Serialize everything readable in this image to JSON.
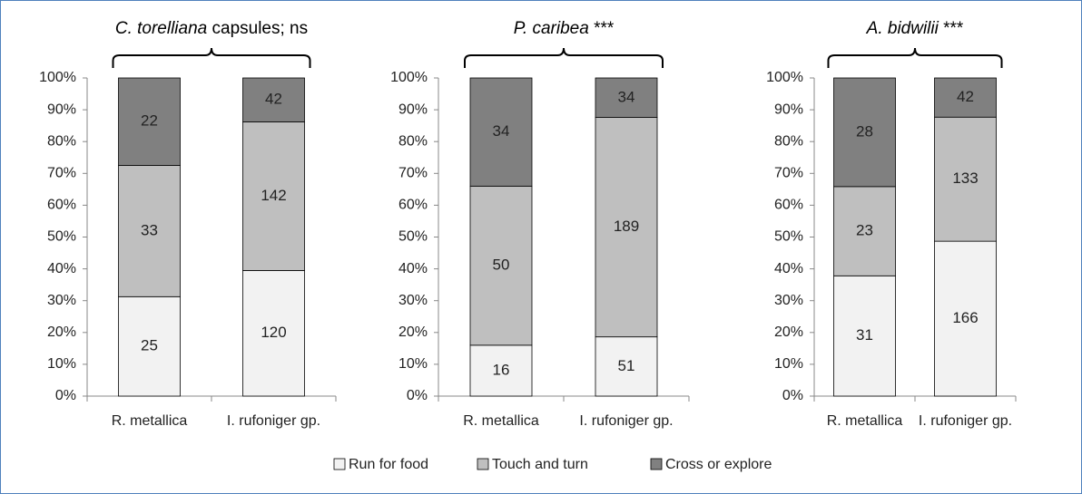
{
  "chart_data": [
    {
      "type": "bar",
      "stacked": "percent",
      "title": [
        {
          "text": "C. torelliana",
          "italic": true
        },
        {
          "text": " capsules; ns"
        }
      ],
      "categories": [
        "R. metallica",
        "I. rufoniger gp."
      ],
      "series": [
        {
          "name": "Run for food",
          "color": "#f2f2f2",
          "values": [
            25,
            120
          ]
        },
        {
          "name": "Touch and turn",
          "color": "#bfbfbf",
          "values": [
            33,
            142
          ]
        },
        {
          "name": "Cross or explore",
          "color": "#808080",
          "values": [
            22,
            42
          ]
        }
      ],
      "ylim": [
        0,
        100
      ],
      "yticks": [
        {
          "value": 0,
          "label": "0%"
        },
        {
          "value": 10,
          "label": "10%"
        },
        {
          "value": 20,
          "label": "20%"
        },
        {
          "value": 30,
          "label": "30%"
        },
        {
          "value": 40,
          "label": "40%"
        },
        {
          "value": 50,
          "label": "50%"
        },
        {
          "value": 60,
          "label": "60%"
        },
        {
          "value": 70,
          "label": "70%"
        },
        {
          "value": 80,
          "label": "80%"
        },
        {
          "value": 90,
          "label": "90%"
        },
        {
          "value": 100,
          "label": "100%"
        }
      ]
    },
    {
      "type": "bar",
      "stacked": "percent",
      "title": [
        {
          "text": "P. caribea",
          "italic": true
        },
        {
          "text": " ***"
        }
      ],
      "categories": [
        "R. metallica",
        "I. rufoniger gp."
      ],
      "series": [
        {
          "color": "#f2f2f2",
          "values": [
            16,
            51
          ]
        },
        {
          "color": "#bfbfbf",
          "values": [
            50,
            189
          ]
        },
        {
          "color": "#808080",
          "values": [
            34,
            34
          ]
        }
      ],
      "ylim": [
        0,
        100
      ],
      "yticks": [
        {
          "value": 0,
          "label": "0%"
        },
        {
          "value": 10,
          "label": "10%"
        },
        {
          "value": 20,
          "label": "20%"
        },
        {
          "value": 30,
          "label": "30%"
        },
        {
          "value": 40,
          "label": "40%"
        },
        {
          "value": 50,
          "label": "50%"
        },
        {
          "value": 60,
          "label": "60%"
        },
        {
          "value": 70,
          "label": "70%"
        },
        {
          "value": 80,
          "label": "80%"
        },
        {
          "value": 90,
          "label": "90%"
        },
        {
          "value": 100,
          "label": "100%"
        }
      ]
    },
    {
      "type": "bar",
      "stacked": "percent",
      "title": [
        {
          "text": "A. bidwilii",
          "italic": true
        },
        {
          "text": " ***"
        }
      ],
      "categories": [
        "R. metallica",
        "I. rufoniger gp."
      ],
      "series": [
        {
          "color": "#f2f2f2",
          "values": [
            31,
            166
          ]
        },
        {
          "color": "#bfbfbf",
          "values": [
            23,
            133
          ]
        },
        {
          "color": "#808080",
          "values": [
            28,
            42
          ]
        }
      ],
      "ylim": [
        0,
        100
      ],
      "yticks": [
        {
          "value": 0,
          "label": "0%"
        },
        {
          "value": 10,
          "label": "10%"
        },
        {
          "value": 20,
          "label": "20%"
        },
        {
          "value": 30,
          "label": "30%"
        },
        {
          "value": 40,
          "label": "40%"
        },
        {
          "value": 50,
          "label": "50%"
        },
        {
          "value": 60,
          "label": "60%"
        },
        {
          "value": 70,
          "label": "70%"
        },
        {
          "value": 80,
          "label": "80%"
        },
        {
          "value": 90,
          "label": "90%"
        },
        {
          "value": 100,
          "label": "100%"
        }
      ]
    }
  ]
}
